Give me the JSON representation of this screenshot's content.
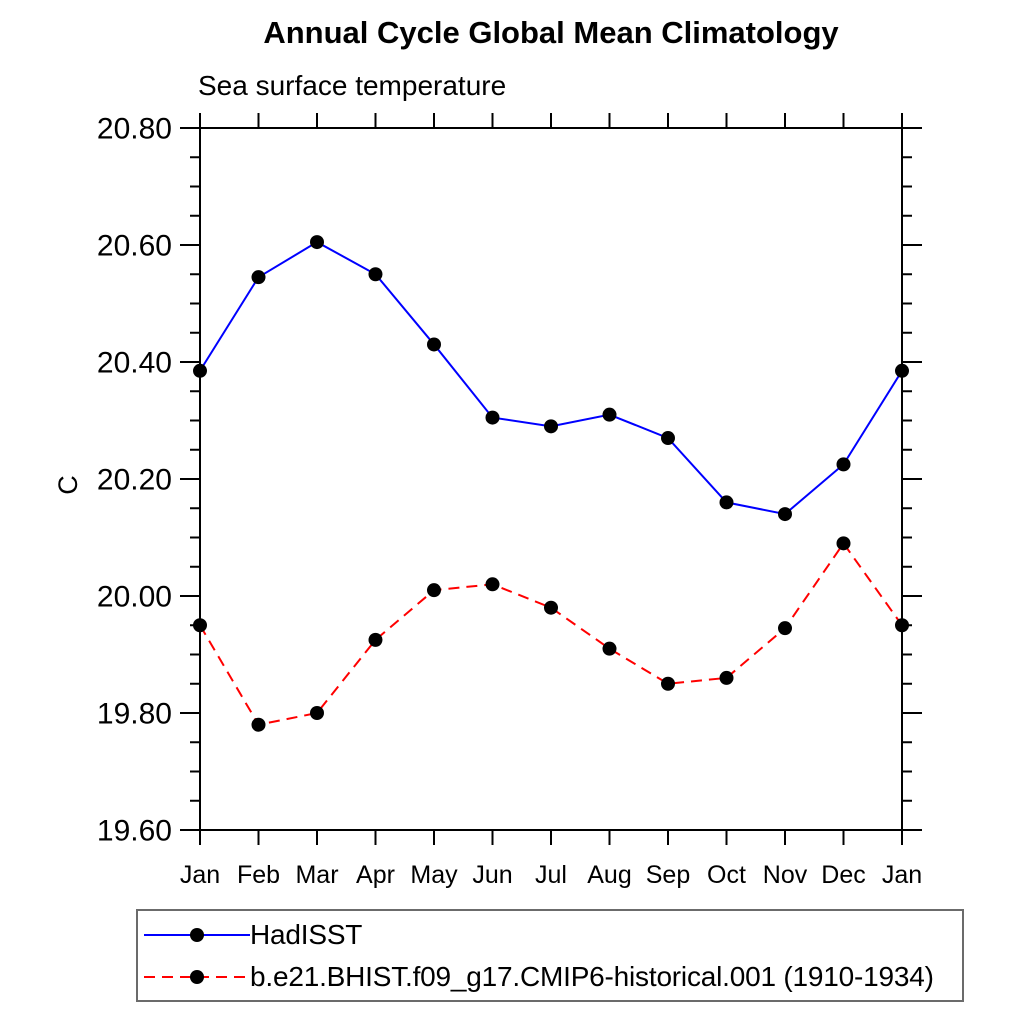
{
  "chart": {
    "title": "Annual Cycle Global Mean Climatology",
    "subtitle": "Sea surface temperature",
    "ylabel": "C"
  },
  "chart_data": {
    "type": "line",
    "title": "Annual Cycle Global Mean Climatology",
    "subtitle": "Sea surface temperature",
    "xlabel": "",
    "ylabel": "C",
    "x_categories": [
      "Jan",
      "Feb",
      "Mar",
      "Apr",
      "May",
      "Jun",
      "Jul",
      "Aug",
      "Sep",
      "Oct",
      "Nov",
      "Dec",
      "Jan"
    ],
    "ylim": [
      19.6,
      20.8
    ],
    "y_major_step": 0.2,
    "y_minor_step": 0.05,
    "y_tick_labels": [
      "19.60",
      "19.80",
      "20.00",
      "20.20",
      "20.40",
      "20.60",
      "20.80"
    ],
    "grid": false,
    "legend_position": "bottom-left-box",
    "axis_color": "#000000",
    "marker": {
      "shape": "filled-circle",
      "color": "#000000",
      "radius": 7
    },
    "series": [
      {
        "name": "HadISST",
        "color": "#0000ff",
        "line_style": "solid",
        "values": [
          20.385,
          20.545,
          20.605,
          20.55,
          20.43,
          20.305,
          20.29,
          20.31,
          20.27,
          20.16,
          20.14,
          20.225,
          20.385
        ]
      },
      {
        "name": "b.e21.BHIST.f09_g17.CMIP6-historical.001 (1910-1934)",
        "color": "#ff0000",
        "line_style": "dashed",
        "values": [
          19.95,
          19.78,
          19.8,
          19.925,
          20.01,
          20.02,
          19.98,
          19.91,
          19.85,
          19.86,
          19.945,
          20.09,
          19.95
        ]
      }
    ]
  }
}
